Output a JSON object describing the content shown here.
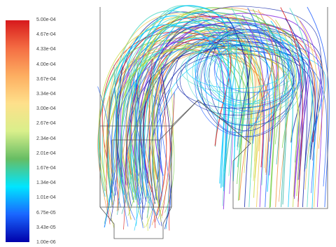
{
  "legend": {
    "type": "color-scale",
    "colors": [
      "#d7191c",
      "#f46d43",
      "#fdae61",
      "#fee08b",
      "#d9ef8b",
      "#66bd63",
      "#00e5ff",
      "#1a66ff",
      "#0000aa"
    ],
    "ticks": [
      "5.00e-04",
      "4.67e-04",
      "4.33e-04",
      "4.00e-04",
      "3.67e-04",
      "3.34e-04",
      "3.00e-04",
      "2.67e-04",
      "2.34e-04",
      "2.01e-04",
      "1.67e-04",
      "1.34e-04",
      "1.01e-04",
      "6.75e-05",
      "3.43e-05",
      "1.00e-06"
    ]
  },
  "diagram": {
    "kind": "pathline-plot",
    "line_colors": [
      "#0a1fa8",
      "#1d5cff",
      "#00c8ff",
      "#4dd9c7",
      "#7ad04b",
      "#c7d93a",
      "#f2c94c",
      "#f28b30",
      "#d7191c",
      "#8a2be2",
      "#2bb3a3"
    ]
  }
}
